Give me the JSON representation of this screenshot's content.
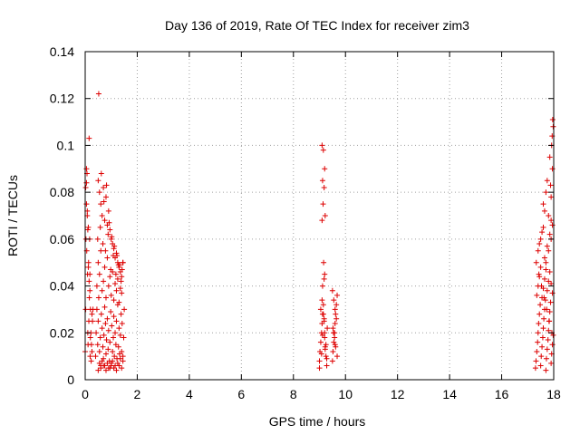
{
  "chart_data": {
    "type": "scatter",
    "title": "Day 136 of 2019, Rate Of TEC Index for receiver zim3",
    "xlabel": "GPS time / hours",
    "ylabel": "ROTI / TECUs",
    "xlim": [
      0,
      18
    ],
    "ylim": [
      0,
      0.14
    ],
    "x_ticks": [
      0,
      2,
      4,
      6,
      8,
      10,
      12,
      14,
      16,
      18
    ],
    "x_tick_labels": [
      "0",
      "2",
      "4",
      "6",
      "8",
      "10",
      "12",
      "14",
      "16",
      "18"
    ],
    "y_ticks": [
      0,
      0.02,
      0.04,
      0.06,
      0.08,
      0.1,
      0.12,
      0.14
    ],
    "y_tick_labels": [
      "0",
      "0.02",
      "0.04",
      "0.06",
      "0.08",
      "0.1",
      "0.12",
      "0.14"
    ],
    "grid": true,
    "marker": "+",
    "colors": {
      "points": "#dd0000",
      "grid": "#a0a0a0",
      "frame": "#000000"
    },
    "series": [
      {
        "name": "ROTI",
        "x": [
          0.0,
          0.02,
          0.03,
          0.05,
          0.05,
          0.06,
          0.07,
          0.08,
          0.09,
          0.1,
          0.11,
          0.12,
          0.13,
          0.14,
          0.15,
          0.16,
          0.17,
          0.18,
          0.19,
          0.2,
          0.22,
          0.24,
          0.26,
          0.28,
          0.3,
          0.02,
          0.05,
          0.08,
          0.1,
          0.12,
          0.15,
          0.18,
          0.2,
          0.23,
          0.26,
          0.4,
          0.42,
          0.45,
          0.48,
          0.5,
          0.52,
          0.55,
          0.58,
          0.6,
          0.62,
          0.65,
          0.68,
          0.7,
          0.72,
          0.75,
          0.78,
          0.8,
          0.82,
          0.85,
          0.88,
          0.9,
          0.93,
          0.95,
          0.98,
          1.0,
          1.02,
          1.05,
          1.08,
          1.1,
          1.12,
          1.15,
          1.18,
          1.2,
          1.22,
          1.25,
          1.28,
          1.3,
          1.32,
          1.35,
          1.38,
          1.4,
          1.42,
          1.45,
          1.48,
          1.5,
          0.45,
          0.5,
          0.55,
          0.6,
          0.65,
          0.7,
          0.75,
          0.8,
          0.85,
          0.9,
          0.95,
          1.0,
          1.05,
          1.1,
          1.15,
          1.2,
          1.25,
          1.3,
          1.35,
          1.4,
          1.45,
          0.48,
          0.58,
          0.68,
          0.78,
          0.88,
          0.98,
          1.08,
          1.18,
          1.28,
          1.38,
          0.5,
          0.55,
          0.6,
          0.65,
          0.7,
          0.75,
          0.8,
          0.85,
          0.9,
          0.95,
          1.0,
          1.05,
          1.1,
          1.15,
          1.2,
          1.25,
          1.3,
          1.35,
          1.4,
          1.45,
          0.52,
          0.62,
          0.72,
          0.82,
          0.92,
          1.02,
          1.12,
          1.22,
          1.32,
          1.42,
          0.5,
          0.6,
          0.7,
          0.8,
          0.9,
          1.0,
          1.1,
          1.2,
          1.3,
          1.4,
          0.55,
          0.65,
          0.75,
          0.85,
          0.95,
          1.05,
          1.15,
          1.25,
          1.35,
          1.45,
          9.0,
          9.02,
          9.05,
          9.08,
          9.1,
          9.12,
          9.15,
          9.18,
          9.2,
          9.22,
          9.25,
          9.28,
          9.3,
          9.05,
          9.1,
          9.15,
          9.2,
          9.25,
          9.0,
          9.08,
          9.12,
          9.18,
          9.22,
          9.28,
          9.1,
          9.15,
          9.2,
          9.12,
          9.18,
          9.14,
          9.22,
          9.1,
          9.16,
          9.2,
          9.12,
          9.18,
          9.5,
          9.52,
          9.55,
          9.58,
          9.6,
          9.62,
          9.65,
          9.68,
          9.5,
          9.55,
          9.6,
          9.65,
          9.52,
          9.58,
          9.62,
          9.68,
          9.54,
          9.6,
          17.3,
          17.32,
          17.35,
          17.38,
          17.4,
          17.42,
          17.45,
          17.48,
          17.5,
          17.52,
          17.55,
          17.58,
          17.6,
          17.62,
          17.65,
          17.68,
          17.7,
          17.72,
          17.75,
          17.78,
          17.8,
          17.82,
          17.85,
          17.88,
          17.9,
          17.92,
          17.95,
          17.98,
          17.35,
          17.4,
          17.45,
          17.5,
          17.55,
          17.6,
          17.65,
          17.7,
          17.75,
          17.8,
          17.85,
          17.9,
          17.95,
          17.33,
          17.43,
          17.53,
          17.63,
          17.73,
          17.83,
          17.93,
          17.4,
          17.5,
          17.6,
          17.7,
          17.8,
          17.9,
          17.45,
          17.55,
          17.65,
          17.75,
          17.85,
          17.95,
          17.6,
          17.7,
          17.8,
          17.9,
          17.95,
          17.85,
          17.75,
          17.65,
          17.92,
          17.98,
          17.96,
          17.9,
          17.88,
          17.94
        ],
        "y": [
          0.012,
          0.03,
          0.06,
          0.075,
          0.09,
          0.055,
          0.088,
          0.07,
          0.045,
          0.02,
          0.015,
          0.065,
          0.05,
          0.025,
          0.103,
          0.035,
          0.06,
          0.045,
          0.01,
          0.03,
          0.02,
          0.015,
          0.012,
          0.025,
          0.03,
          0.082,
          0.084,
          0.072,
          0.064,
          0.048,
          0.042,
          0.038,
          0.018,
          0.008,
          0.028,
          0.01,
          0.02,
          0.03,
          0.015,
          0.025,
          0.035,
          0.012,
          0.018,
          0.006,
          0.028,
          0.022,
          0.014,
          0.009,
          0.019,
          0.031,
          0.024,
          0.011,
          0.017,
          0.026,
          0.013,
          0.021,
          0.008,
          0.016,
          0.029,
          0.007,
          0.023,
          0.012,
          0.018,
          0.027,
          0.01,
          0.02,
          0.015,
          0.025,
          0.009,
          0.032,
          0.014,
          0.022,
          0.011,
          0.019,
          0.028,
          0.012,
          0.024,
          0.01,
          0.018,
          0.03,
          0.04,
          0.05,
          0.045,
          0.055,
          0.038,
          0.042,
          0.048,
          0.035,
          0.052,
          0.04,
          0.044,
          0.036,
          0.046,
          0.034,
          0.041,
          0.038,
          0.043,
          0.033,
          0.039,
          0.037,
          0.05,
          0.06,
          0.065,
          0.058,
          0.055,
          0.062,
          0.047,
          0.053,
          0.045,
          0.049,
          0.042,
          0.085,
          0.08,
          0.075,
          0.07,
          0.082,
          0.068,
          0.078,
          0.066,
          0.072,
          0.064,
          0.06,
          0.058,
          0.056,
          0.052,
          0.054,
          0.05,
          0.048,
          0.046,
          0.044,
          0.05,
          0.122,
          0.088,
          0.076,
          0.083,
          0.067,
          0.061,
          0.057,
          0.053,
          0.049,
          0.047,
          0.004,
          0.005,
          0.006,
          0.004,
          0.005,
          0.006,
          0.005,
          0.004,
          0.006,
          0.005,
          0.007,
          0.008,
          0.006,
          0.007,
          0.005,
          0.008,
          0.006,
          0.007,
          0.009,
          0.008,
          0.008,
          0.012,
          0.016,
          0.02,
          0.024,
          0.028,
          0.032,
          0.026,
          0.018,
          0.014,
          0.01,
          0.006,
          0.022,
          0.03,
          0.034,
          0.028,
          0.02,
          0.015,
          0.005,
          0.011,
          0.019,
          0.025,
          0.013,
          0.009,
          0.1,
          0.098,
          0.09,
          0.085,
          0.082,
          0.075,
          0.07,
          0.068,
          0.05,
          0.045,
          0.04,
          0.043,
          0.008,
          0.012,
          0.016,
          0.02,
          0.024,
          0.028,
          0.032,
          0.036,
          0.038,
          0.034,
          0.03,
          0.026,
          0.022,
          0.018,
          0.014,
          0.01,
          0.02,
          0.015,
          0.005,
          0.008,
          0.012,
          0.016,
          0.02,
          0.024,
          0.028,
          0.032,
          0.006,
          0.01,
          0.014,
          0.018,
          0.022,
          0.026,
          0.03,
          0.034,
          0.004,
          0.009,
          0.013,
          0.017,
          0.021,
          0.025,
          0.029,
          0.033,
          0.007,
          0.011,
          0.015,
          0.019,
          0.036,
          0.04,
          0.044,
          0.048,
          0.035,
          0.039,
          0.043,
          0.047,
          0.038,
          0.042,
          0.046,
          0.041,
          0.037,
          0.05,
          0.045,
          0.04,
          0.035,
          0.03,
          0.025,
          0.02,
          0.055,
          0.06,
          0.065,
          0.05,
          0.055,
          0.06,
          0.058,
          0.063,
          0.052,
          0.057,
          0.062,
          0.066,
          0.075,
          0.08,
          0.07,
          0.068,
          0.09,
          0.095,
          0.085,
          0.072,
          0.1,
          0.108,
          0.111,
          0.078,
          0.083,
          0.104
        ]
      }
    ]
  }
}
